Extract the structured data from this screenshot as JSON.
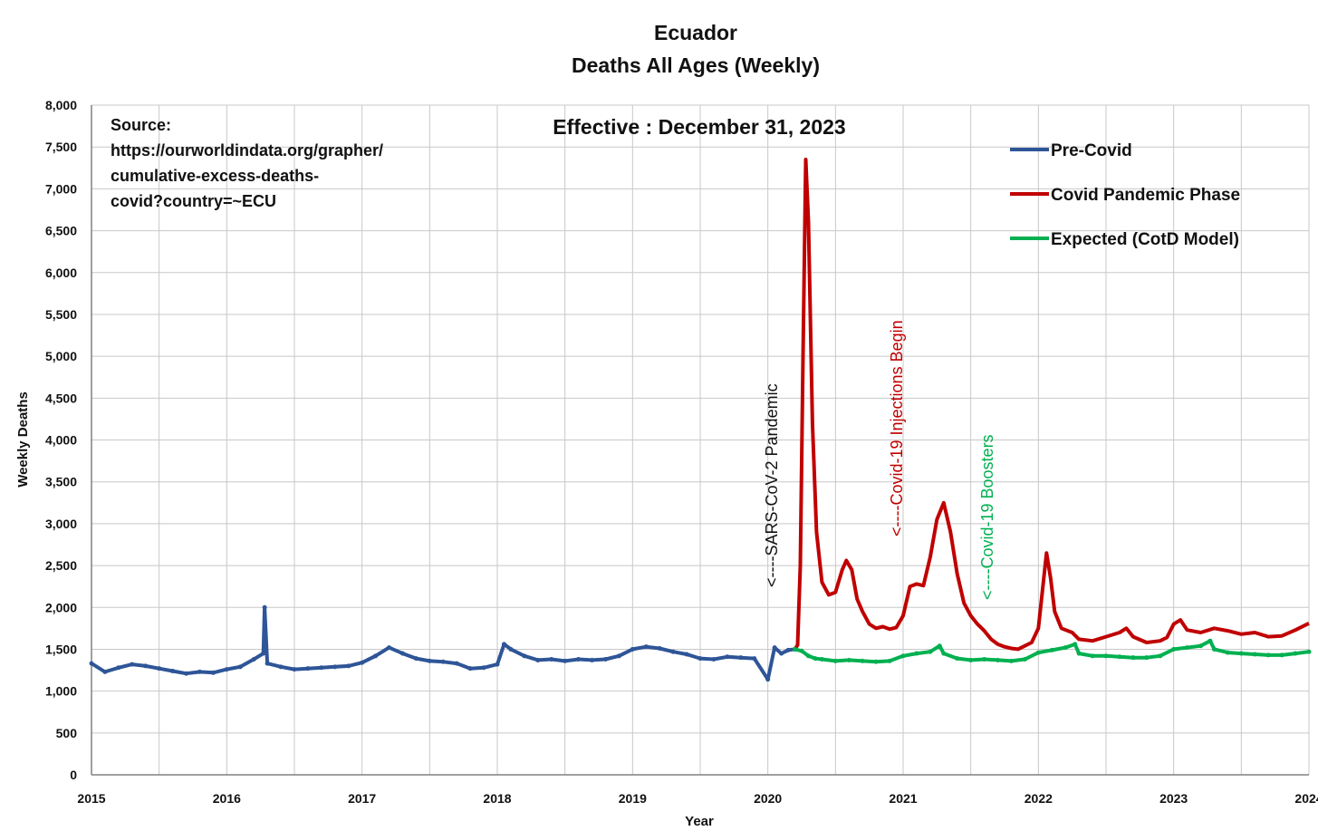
{
  "chart_data": {
    "type": "line",
    "title": "Ecuador",
    "subtitle": "Deaths All Ages (Weekly)",
    "xlabel": "Year",
    "ylabel": "Weekly Deaths",
    "xlim": [
      2015,
      2024
    ],
    "ylim": [
      0,
      8000
    ],
    "x_ticks": [
      "2015",
      "2016",
      "2017",
      "2018",
      "2019",
      "2020",
      "2021",
      "2022",
      "2023",
      "2024"
    ],
    "y_ticks": [
      "0",
      "500",
      "1,000",
      "1,500",
      "2,000",
      "2,500",
      "3,000",
      "3,500",
      "4,000",
      "4,500",
      "5,000",
      "5,500",
      "6,000",
      "6,500",
      "7,000",
      "7,500",
      "8,000"
    ],
    "grid": true,
    "legend_position": "top-right",
    "series": [
      {
        "name": "Pre-Covid",
        "color": "#2e5597",
        "points": [
          [
            2015.0,
            1330
          ],
          [
            2015.1,
            1230
          ],
          [
            2015.2,
            1280
          ],
          [
            2015.3,
            1320
          ],
          [
            2015.4,
            1300
          ],
          [
            2015.5,
            1270
          ],
          [
            2015.6,
            1240
          ],
          [
            2015.7,
            1210
          ],
          [
            2015.8,
            1230
          ],
          [
            2015.9,
            1220
          ],
          [
            2016.0,
            1260
          ],
          [
            2016.1,
            1290
          ],
          [
            2016.2,
            1380
          ],
          [
            2016.27,
            1450
          ],
          [
            2016.28,
            2000
          ],
          [
            2016.3,
            1330
          ],
          [
            2016.4,
            1290
          ],
          [
            2016.5,
            1260
          ],
          [
            2016.6,
            1270
          ],
          [
            2016.7,
            1280
          ],
          [
            2016.8,
            1290
          ],
          [
            2016.9,
            1300
          ],
          [
            2017.0,
            1340
          ],
          [
            2017.1,
            1420
          ],
          [
            2017.2,
            1520
          ],
          [
            2017.3,
            1450
          ],
          [
            2017.4,
            1390
          ],
          [
            2017.5,
            1360
          ],
          [
            2017.6,
            1350
          ],
          [
            2017.7,
            1330
          ],
          [
            2017.8,
            1270
          ],
          [
            2017.9,
            1280
          ],
          [
            2018.0,
            1320
          ],
          [
            2018.05,
            1560
          ],
          [
            2018.1,
            1500
          ],
          [
            2018.2,
            1420
          ],
          [
            2018.3,
            1370
          ],
          [
            2018.4,
            1380
          ],
          [
            2018.5,
            1360
          ],
          [
            2018.6,
            1380
          ],
          [
            2018.7,
            1370
          ],
          [
            2018.8,
            1380
          ],
          [
            2018.9,
            1420
          ],
          [
            2019.0,
            1500
          ],
          [
            2019.1,
            1530
          ],
          [
            2019.2,
            1510
          ],
          [
            2019.3,
            1470
          ],
          [
            2019.4,
            1440
          ],
          [
            2019.5,
            1390
          ],
          [
            2019.6,
            1380
          ],
          [
            2019.7,
            1410
          ],
          [
            2019.8,
            1400
          ],
          [
            2019.9,
            1390
          ],
          [
            2020.0,
            1140
          ],
          [
            2020.05,
            1520
          ],
          [
            2020.1,
            1450
          ],
          [
            2020.15,
            1490
          ],
          [
            2020.2,
            1500
          ]
        ]
      },
      {
        "name": "Covid Pandemic Phase",
        "color": "#c00000",
        "points": [
          [
            2020.2,
            1500
          ],
          [
            2020.22,
            1550
          ],
          [
            2020.24,
            2500
          ],
          [
            2020.26,
            5000
          ],
          [
            2020.28,
            7350
          ],
          [
            2020.3,
            6600
          ],
          [
            2020.33,
            4200
          ],
          [
            2020.36,
            2900
          ],
          [
            2020.4,
            2300
          ],
          [
            2020.45,
            2150
          ],
          [
            2020.5,
            2180
          ],
          [
            2020.55,
            2450
          ],
          [
            2020.58,
            2560
          ],
          [
            2020.62,
            2450
          ],
          [
            2020.66,
            2100
          ],
          [
            2020.7,
            1950
          ],
          [
            2020.75,
            1800
          ],
          [
            2020.8,
            1750
          ],
          [
            2020.85,
            1770
          ],
          [
            2020.9,
            1740
          ],
          [
            2020.95,
            1760
          ],
          [
            2021.0,
            1900
          ],
          [
            2021.05,
            2250
          ],
          [
            2021.1,
            2280
          ],
          [
            2021.15,
            2260
          ],
          [
            2021.2,
            2600
          ],
          [
            2021.25,
            3050
          ],
          [
            2021.3,
            3250
          ],
          [
            2021.35,
            2900
          ],
          [
            2021.4,
            2400
          ],
          [
            2021.45,
            2050
          ],
          [
            2021.5,
            1900
          ],
          [
            2021.55,
            1800
          ],
          [
            2021.6,
            1720
          ],
          [
            2021.65,
            1620
          ],
          [
            2021.7,
            1560
          ],
          [
            2021.75,
            1530
          ],
          [
            2021.8,
            1510
          ],
          [
            2021.85,
            1500
          ],
          [
            2021.9,
            1540
          ],
          [
            2021.95,
            1580
          ],
          [
            2022.0,
            1750
          ],
          [
            2022.03,
            2200
          ],
          [
            2022.06,
            2650
          ],
          [
            2022.09,
            2350
          ],
          [
            2022.12,
            1950
          ],
          [
            2022.17,
            1750
          ],
          [
            2022.25,
            1700
          ],
          [
            2022.3,
            1620
          ],
          [
            2022.4,
            1600
          ],
          [
            2022.5,
            1650
          ],
          [
            2022.6,
            1700
          ],
          [
            2022.65,
            1750
          ],
          [
            2022.7,
            1650
          ],
          [
            2022.8,
            1580
          ],
          [
            2022.9,
            1600
          ],
          [
            2022.95,
            1640
          ],
          [
            2023.0,
            1800
          ],
          [
            2023.05,
            1850
          ],
          [
            2023.1,
            1730
          ],
          [
            2023.2,
            1700
          ],
          [
            2023.3,
            1750
          ],
          [
            2023.4,
            1720
          ],
          [
            2023.5,
            1680
          ],
          [
            2023.6,
            1700
          ],
          [
            2023.7,
            1650
          ],
          [
            2023.8,
            1660
          ],
          [
            2023.9,
            1730
          ],
          [
            2024.0,
            1810
          ]
        ]
      },
      {
        "name": "Expected (CotD Model)",
        "color": "#00b050",
        "points": [
          [
            2020.2,
            1500
          ],
          [
            2020.25,
            1480
          ],
          [
            2020.3,
            1420
          ],
          [
            2020.35,
            1390
          ],
          [
            2020.4,
            1380
          ],
          [
            2020.5,
            1360
          ],
          [
            2020.6,
            1370
          ],
          [
            2020.7,
            1360
          ],
          [
            2020.8,
            1350
          ],
          [
            2020.9,
            1360
          ],
          [
            2021.0,
            1420
          ],
          [
            2021.1,
            1450
          ],
          [
            2021.2,
            1470
          ],
          [
            2021.27,
            1540
          ],
          [
            2021.3,
            1450
          ],
          [
            2021.4,
            1390
          ],
          [
            2021.5,
            1370
          ],
          [
            2021.6,
            1380
          ],
          [
            2021.7,
            1370
          ],
          [
            2021.8,
            1360
          ],
          [
            2021.9,
            1380
          ],
          [
            2022.0,
            1460
          ],
          [
            2022.1,
            1490
          ],
          [
            2022.2,
            1520
          ],
          [
            2022.27,
            1560
          ],
          [
            2022.3,
            1450
          ],
          [
            2022.4,
            1420
          ],
          [
            2022.5,
            1420
          ],
          [
            2022.6,
            1410
          ],
          [
            2022.7,
            1400
          ],
          [
            2022.8,
            1400
          ],
          [
            2022.9,
            1420
          ],
          [
            2023.0,
            1500
          ],
          [
            2023.1,
            1520
          ],
          [
            2023.2,
            1540
          ],
          [
            2023.27,
            1600
          ],
          [
            2023.3,
            1500
          ],
          [
            2023.4,
            1460
          ],
          [
            2023.5,
            1450
          ],
          [
            2023.6,
            1440
          ],
          [
            2023.7,
            1430
          ],
          [
            2023.8,
            1430
          ],
          [
            2023.9,
            1450
          ],
          [
            2024.0,
            1470
          ]
        ]
      }
    ],
    "annotations": [
      {
        "text": "<----SARS-CoV-2 Pandemic",
        "color": "#111111"
      },
      {
        "text": "<----Covid-19 Injections Begin",
        "color": "#c00000"
      },
      {
        "text": "<----Covid-19 Boosters",
        "color": "#00b050"
      }
    ],
    "source_note": [
      "Source:",
      "https://ourworldindata.org/grapher/",
      "cumulative-excess-deaths-",
      "covid?country=~ECU"
    ],
    "effective_note": "Effective : December 31, 2023"
  }
}
